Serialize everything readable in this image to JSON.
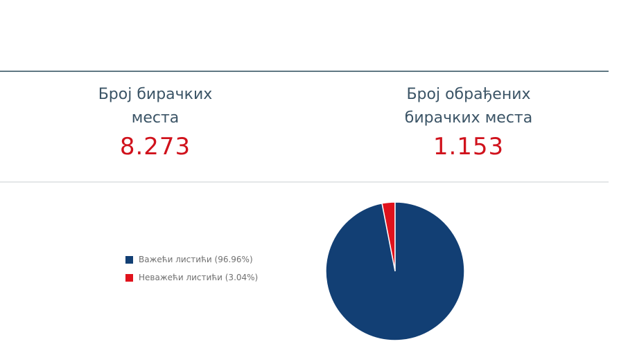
{
  "stats": {
    "polling_stations": {
      "label_line1": "Број бирачких",
      "label_line2": "места",
      "value": "8.273"
    },
    "processed_stations": {
      "label_line1": "Број обрађених",
      "label_line2": "бирачких места",
      "value": "1.153"
    }
  },
  "colors": {
    "valid": "#123f74",
    "invalid": "#e0121c"
  },
  "chart_data": {
    "type": "pie",
    "series": [
      {
        "name": "Важећи листићи (96.96%)",
        "value": 96.96,
        "color": "#123f74"
      },
      {
        "name": "Неважећи листићи (3.04%)",
        "value": 3.04,
        "color": "#e0121c"
      }
    ],
    "legend": "left",
    "title": ""
  }
}
